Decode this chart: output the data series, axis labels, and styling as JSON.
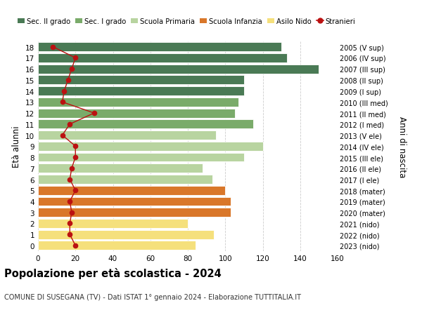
{
  "ages": [
    18,
    17,
    16,
    15,
    14,
    13,
    12,
    11,
    10,
    9,
    8,
    7,
    6,
    5,
    4,
    3,
    2,
    1,
    0
  ],
  "bar_values": [
    130,
    133,
    150,
    110,
    110,
    107,
    105,
    115,
    95,
    120,
    110,
    88,
    93,
    100,
    103,
    103,
    80,
    94,
    84
  ],
  "stranieri": [
    8,
    20,
    18,
    16,
    14,
    13,
    30,
    17,
    13,
    20,
    20,
    18,
    17,
    20,
    17,
    18,
    17,
    17,
    20
  ],
  "right_labels": [
    "2005 (V sup)",
    "2006 (IV sup)",
    "2007 (III sup)",
    "2008 (II sup)",
    "2009 (I sup)",
    "2010 (III med)",
    "2011 (II med)",
    "2012 (I med)",
    "2013 (V ele)",
    "2014 (IV ele)",
    "2015 (III ele)",
    "2016 (II ele)",
    "2017 (I ele)",
    "2018 (mater)",
    "2019 (mater)",
    "2020 (mater)",
    "2021 (nido)",
    "2022 (nido)",
    "2023 (nido)"
  ],
  "bar_colors": [
    "#4a7a55",
    "#4a7a55",
    "#4a7a55",
    "#4a7a55",
    "#4a7a55",
    "#7aab6a",
    "#7aab6a",
    "#7aab6a",
    "#b8d4a0",
    "#b8d4a0",
    "#b8d4a0",
    "#b8d4a0",
    "#b8d4a0",
    "#d9772a",
    "#d9772a",
    "#d9772a",
    "#f5e07c",
    "#f5e07c",
    "#f5e07c"
  ],
  "title": "Popolazione per età scolastica - 2024",
  "subtitle": "COMUNE DI SUSEGANA (TV) - Dati ISTAT 1° gennaio 2024 - Elaborazione TUTTITALIA.IT",
  "ylabel_left": "Età alunni",
  "ylabel_right": "Anni di nascita",
  "xlim": [
    0,
    160
  ],
  "xticks": [
    0,
    20,
    40,
    60,
    80,
    100,
    120,
    140,
    160
  ],
  "legend_labels": [
    "Sec. II grado",
    "Sec. I grado",
    "Scuola Primaria",
    "Scuola Infanzia",
    "Asilo Nido",
    "Stranieri"
  ],
  "legend_colors": [
    "#4a7a55",
    "#7aab6a",
    "#b8d4a0",
    "#d9772a",
    "#f5e07c",
    "#bb1111"
  ],
  "stranieri_color": "#bb1111",
  "grid_color": "#cccccc"
}
